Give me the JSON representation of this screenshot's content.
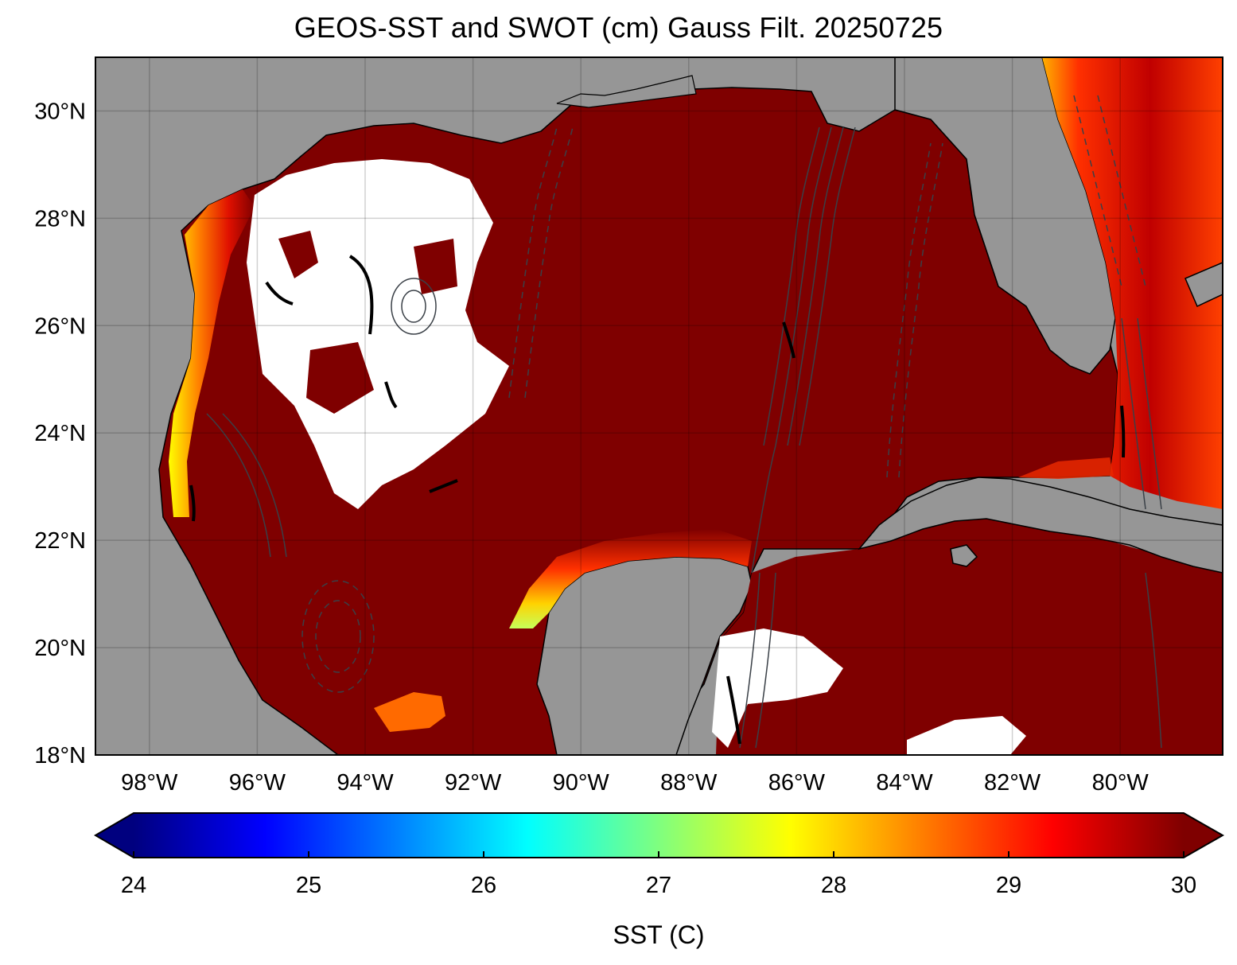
{
  "figure": {
    "title": "GEOS-SST  and SWOT (cm) Gauss Filt. 20250725"
  },
  "map": {
    "lat_ticks": [
      "30°N",
      "28°N",
      "26°N",
      "24°N",
      "22°N",
      "20°N",
      "18°N"
    ],
    "lon_ticks": [
      "98°W",
      "96°W",
      "94°W",
      "92°W",
      "90°W",
      "88°W",
      "86°W",
      "84°W",
      "82°W",
      "80°W"
    ],
    "lon_range": [
      -99.0,
      -78.1
    ],
    "lat_range": [
      18.0,
      31.0
    ],
    "gridlines": true,
    "colors": {
      "land": "#969696",
      "ocean_warm": "#7f0000",
      "missing": "#ffffff",
      "coastline": "#000000",
      "ssh_contour": "#3a4047"
    }
  },
  "colorbar": {
    "label": "SST (C)",
    "ticks": [
      "24",
      "25",
      "26",
      "27",
      "28",
      "29",
      "30"
    ],
    "range": [
      24,
      30
    ],
    "extend": "both",
    "colormap": "jet",
    "stops": [
      "#00007f",
      "#0000ff",
      "#007fff",
      "#00ffff",
      "#7fff7f",
      "#ffff00",
      "#ff7f00",
      "#ff0000",
      "#7f0000"
    ]
  }
}
